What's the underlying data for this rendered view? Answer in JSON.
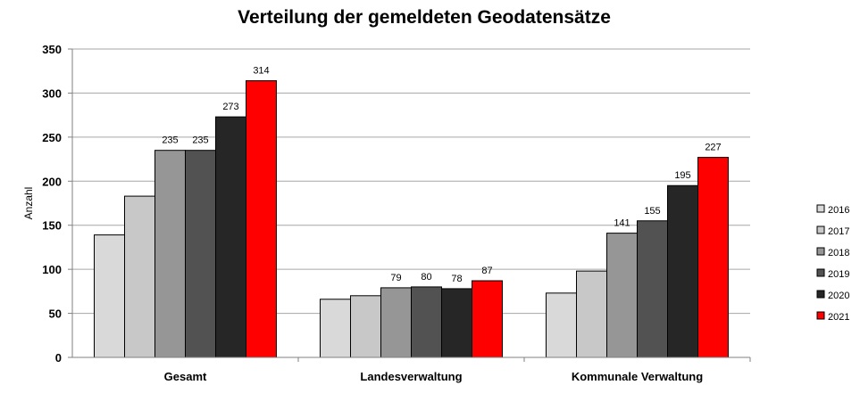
{
  "chart_data": {
    "type": "bar",
    "title": "Verteilung der gemeldeten Geodatensätze",
    "ylabel": "Anzahl",
    "xlabel": "",
    "ylim": [
      0,
      350
    ],
    "yticks": [
      0,
      50,
      100,
      150,
      200,
      250,
      300,
      350
    ],
    "grid": true,
    "legend_position": "right",
    "categories": [
      "Gesamt",
      "Landesverwaltung",
      "Kommunale Verwaltung"
    ],
    "series": [
      {
        "name": "2016",
        "color": "#d9d9d9",
        "values": [
          139,
          66,
          73
        ]
      },
      {
        "name": "2017",
        "color": "#c8c8c8",
        "values": [
          183,
          70,
          98
        ]
      },
      {
        "name": "2018",
        "color": "#969696",
        "values": [
          235,
          79,
          141
        ]
      },
      {
        "name": "2019",
        "color": "#525252",
        "values": [
          235,
          80,
          155
        ]
      },
      {
        "name": "2020",
        "color": "#262626",
        "values": [
          273,
          78,
          195
        ]
      },
      {
        "name": "2021",
        "color": "#ff0000",
        "values": [
          314,
          87,
          227
        ]
      }
    ],
    "data_labels": [
      {
        "category": 0,
        "series": 2,
        "text": "235"
      },
      {
        "category": 0,
        "series": 3,
        "text": "235"
      },
      {
        "category": 0,
        "series": 4,
        "text": "273"
      },
      {
        "category": 0,
        "series": 5,
        "text": "314"
      },
      {
        "category": 1,
        "series": 2,
        "text": "79"
      },
      {
        "category": 1,
        "series": 3,
        "text": "80"
      },
      {
        "category": 1,
        "series": 4,
        "text": "78"
      },
      {
        "category": 1,
        "series": 5,
        "text": "87"
      },
      {
        "category": 2,
        "series": 2,
        "text": "141"
      },
      {
        "category": 2,
        "series": 3,
        "text": "155"
      },
      {
        "category": 2,
        "series": 4,
        "text": "195"
      },
      {
        "category": 2,
        "series": 5,
        "text": "227"
      }
    ]
  }
}
